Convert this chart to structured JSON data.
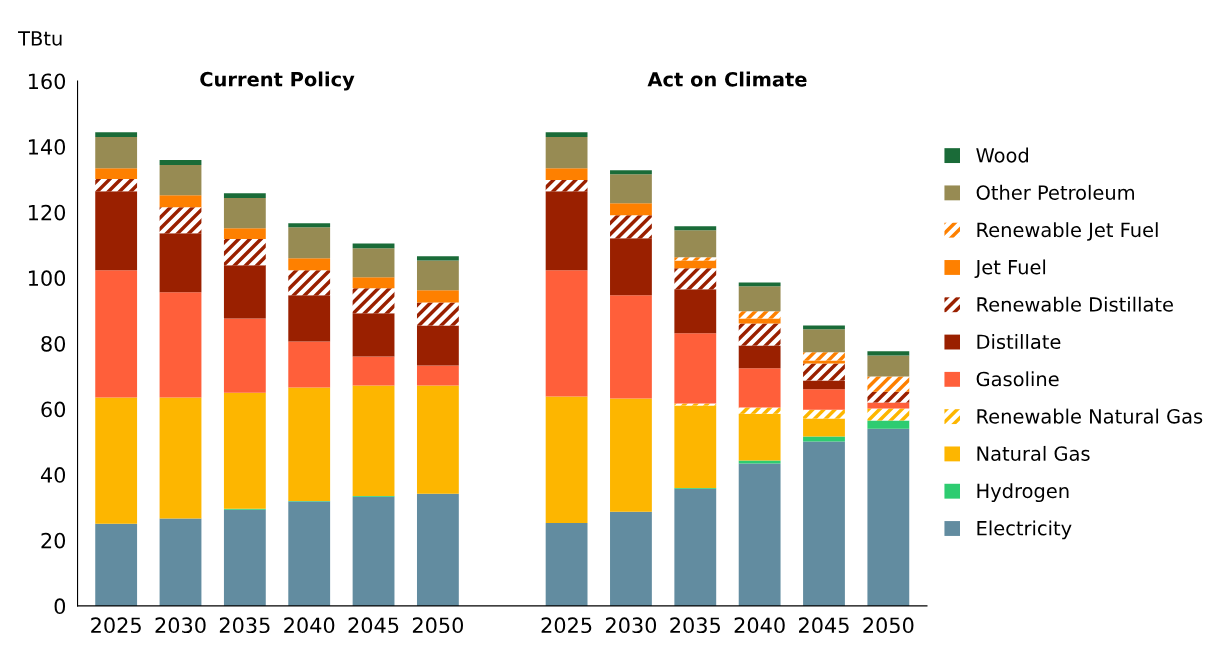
{
  "chart_data": {
    "type": "bar",
    "stacked": true,
    "ylabel": "TBtu",
    "categories": [
      "2025",
      "2030",
      "2035",
      "2040",
      "2045",
      "2050",
      null,
      "2025",
      "2030",
      "2035",
      "2040",
      "2045",
      "2050"
    ],
    "annotations": [
      "Current Policy",
      "Act on Climate"
    ],
    "ylim": [
      0,
      160
    ],
    "yticks": [
      0,
      20,
      40,
      60,
      80,
      100,
      120,
      140,
      160
    ],
    "grid": false,
    "legend": "right",
    "series": [
      {
        "name": "Electricity",
        "color": "#628ca0",
        "values": [
          25.0,
          26.6,
          29.3,
          31.8,
          33.3,
          34.2,
          null,
          25.3,
          28.7,
          35.7,
          43.4,
          50.1,
          54.0
        ]
      },
      {
        "name": "Hydrogen",
        "color": "#2ecc71",
        "values": [
          0,
          0,
          0.3,
          0.2,
          0.2,
          0,
          null,
          0,
          0,
          0.2,
          0.9,
          1.5,
          2.5
        ]
      },
      {
        "name": "Natural Gas",
        "color": "#fdb600",
        "values": [
          38.5,
          36.9,
          35.4,
          34.6,
          33.7,
          33.0,
          null,
          38.5,
          34.5,
          25.2,
          14.3,
          5.5,
          0
        ]
      },
      {
        "name": "Renewable Natural Gas",
        "color": "#fdb600",
        "values": [
          0,
          0,
          0,
          0,
          0,
          0,
          null,
          0,
          0,
          0.6,
          1.9,
          2.7,
          3.7
        ]
      },
      {
        "name": "Gasoline",
        "color": "#ff5f3a",
        "values": [
          38.8,
          32.1,
          22.6,
          14.0,
          8.8,
          6.1,
          null,
          38.5,
          31.5,
          21.4,
          11.9,
          6.2,
          1.8
        ]
      },
      {
        "name": "Distillate",
        "color": "#9a2000",
        "values": [
          24.1,
          18.0,
          16.2,
          14.1,
          13.2,
          12.2,
          null,
          24.1,
          17.4,
          13.4,
          7.0,
          2.7,
          0
        ]
      },
      {
        "name": "Renewable Distillate",
        "color": "#9a2000",
        "values": [
          3.7,
          7.9,
          8.0,
          7.6,
          7.6,
          7.0,
          null,
          3.4,
          7.0,
          6.4,
          6.7,
          5.2,
          3.3
        ]
      },
      {
        "name": "Jet Fuel",
        "color": "#fe8000",
        "values": [
          3.3,
          3.7,
          3.3,
          3.7,
          3.4,
          3.7,
          null,
          3.6,
          3.6,
          2.4,
          1.5,
          0.9,
          0
        ]
      },
      {
        "name": "Renewable Jet Fuel",
        "color": "#fe8000",
        "values": [
          0,
          0,
          0,
          0,
          0,
          0,
          null,
          0,
          0,
          1.0,
          2.2,
          2.5,
          4.6
        ]
      },
      {
        "name": "Other Petroleum",
        "color": "#978b53",
        "values": [
          9.5,
          9.2,
          9.2,
          9.4,
          8.8,
          9.1,
          null,
          9.5,
          8.9,
          8.2,
          7.6,
          7.0,
          6.4
        ]
      },
      {
        "name": "Wood",
        "color": "#1a6b38",
        "values": [
          1.5,
          1.5,
          1.5,
          1.2,
          1.5,
          1.3,
          null,
          1.5,
          1.2,
          1.2,
          1.2,
          1.2,
          1.3
        ]
      }
    ]
  }
}
